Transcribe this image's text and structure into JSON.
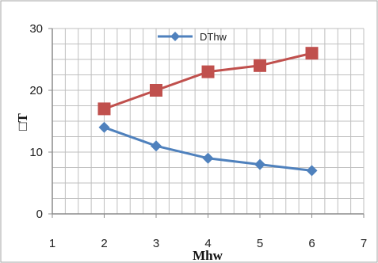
{
  "chart_data": {
    "type": "line",
    "title": "",
    "xlabel": "Mhw",
    "ylabel": "□T",
    "xlim": [
      1,
      7
    ],
    "ylim": [
      0,
      30
    ],
    "x_ticks": [
      1,
      2,
      3,
      4,
      5,
      6,
      7
    ],
    "y_ticks": [
      0,
      10,
      20,
      30
    ],
    "x_minor_step": 0.25,
    "y_minor_step": 2.5,
    "grid": true,
    "legend_position": "top",
    "series": [
      {
        "name": "",
        "color": "#c0504d",
        "marker": "square",
        "in_legend": false,
        "x": [
          2,
          3,
          4,
          5,
          6
        ],
        "y": [
          17,
          20,
          23,
          24,
          26
        ]
      },
      {
        "name": "DThw",
        "color": "#4f81bd",
        "marker": "diamond",
        "in_legend": true,
        "x": [
          2,
          3,
          4,
          5,
          6
        ],
        "y": [
          14,
          11,
          9,
          8,
          7
        ]
      }
    ]
  },
  "colors": {
    "grid": "#bfbfbf",
    "axis": "#8c8c8c",
    "frame": "#a6a6a6",
    "background": "#ffffff"
  }
}
